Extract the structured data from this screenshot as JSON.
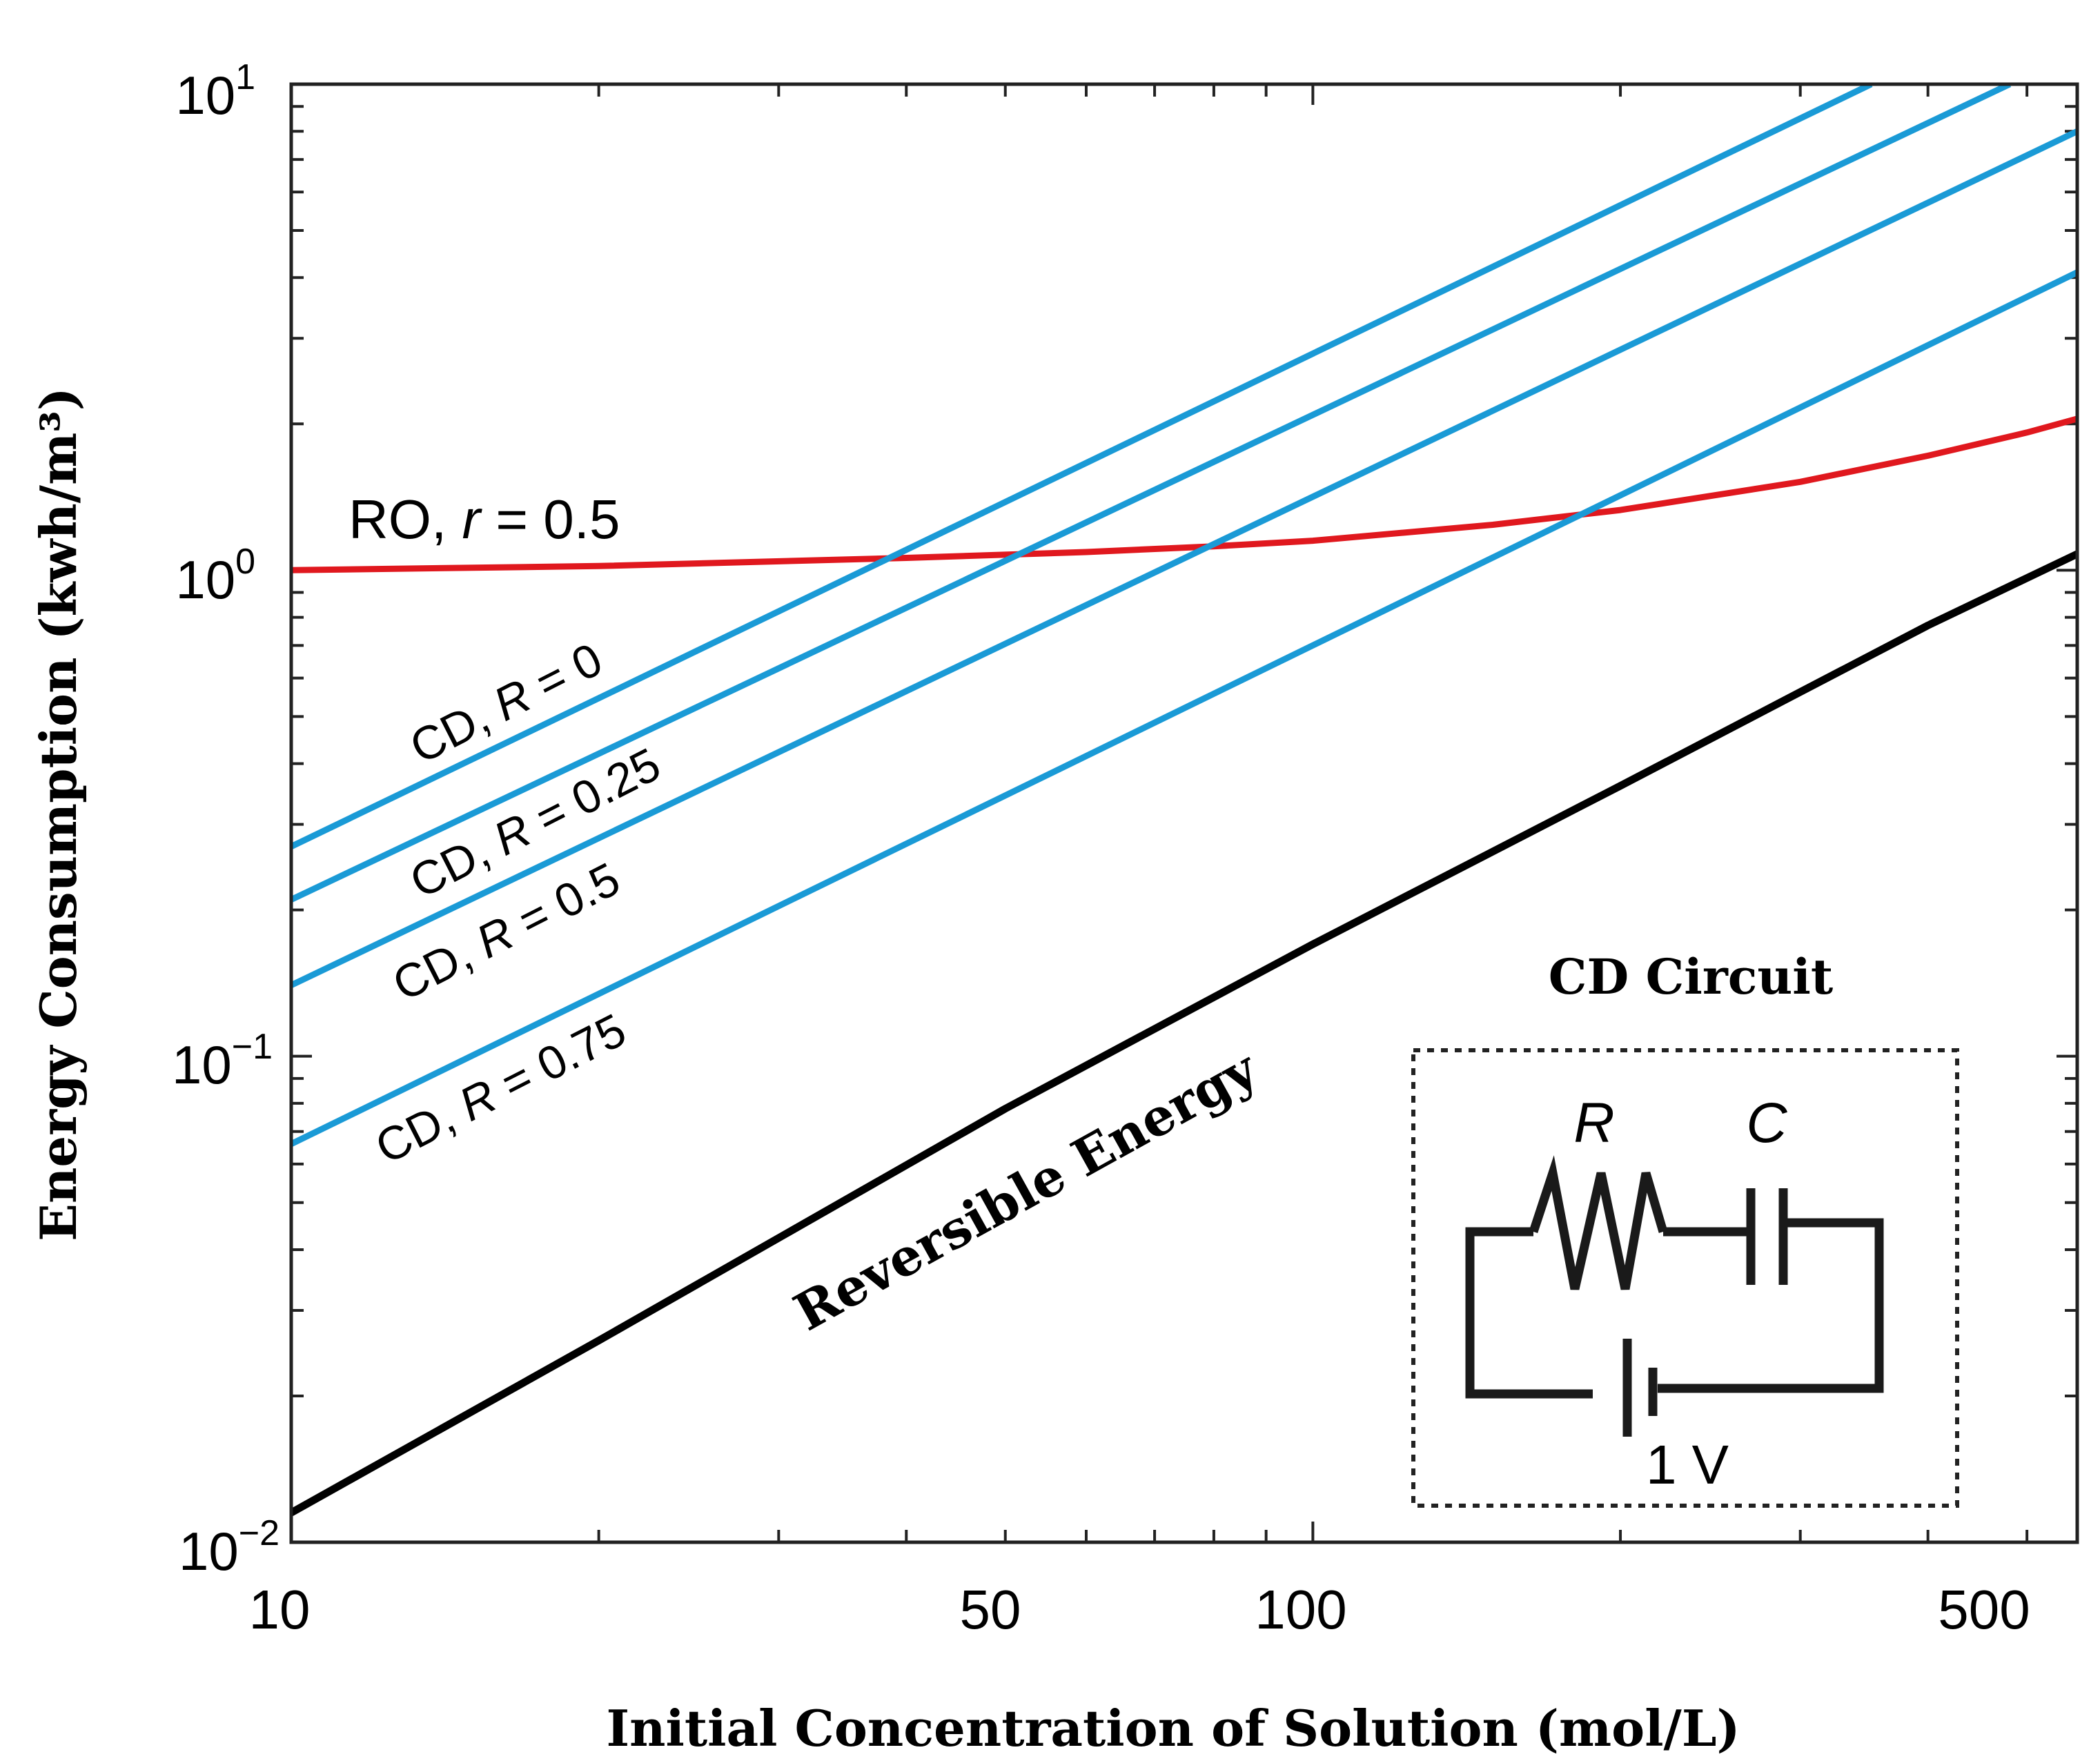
{
  "chart_data": {
    "type": "line",
    "xscale": "log",
    "yscale": "log",
    "xlim": [
      10,
      560
    ],
    "ylim": [
      0.01,
      10
    ],
    "xlabel": "Initial Concentration of Solution (mol/L)",
    "ylabel": "Energy Consumption (kwh/m³)",
    "x_ticks": [
      {
        "value": 10,
        "label": "10"
      },
      {
        "value": 50,
        "label": "50"
      },
      {
        "value": 100,
        "label": "100"
      },
      {
        "value": 500,
        "label": "500"
      }
    ],
    "y_ticks": [
      {
        "value": 0.01,
        "base": "10",
        "exp": "−2"
      },
      {
        "value": 0.1,
        "base": "10",
        "exp": "−1"
      },
      {
        "value": 1,
        "base": "10",
        "exp": "0"
      },
      {
        "value": 10,
        "base": "10",
        "exp": "1"
      }
    ],
    "series": [
      {
        "name": "RO, r = 0.5",
        "color": "#e0181e",
        "x": [
          10,
          20,
          40,
          60,
          80,
          100,
          150,
          200,
          300,
          400,
          500,
          560
        ],
        "y": [
          1.0,
          1.02,
          1.06,
          1.09,
          1.12,
          1.15,
          1.24,
          1.33,
          1.52,
          1.72,
          1.92,
          2.05
        ]
      },
      {
        "name": "CD, R = 0",
        "color": "#1a9ad6",
        "x": [
          10,
          352
        ],
        "y": [
          0.27,
          10
        ]
      },
      {
        "name": "CD, R = 0.25",
        "color": "#1a9ad6",
        "x": [
          10,
          481
        ],
        "y": [
          0.21,
          10
        ]
      },
      {
        "name": "CD, R = 0.5",
        "color": "#1a9ad6",
        "x": [
          10,
          560
        ],
        "y": [
          0.14,
          8.0
        ]
      },
      {
        "name": "CD, R = 0.75",
        "color": "#1a9ad6",
        "x": [
          10,
          560
        ],
        "y": [
          0.066,
          4.1
        ]
      },
      {
        "name": "Reversible Energy",
        "color": "#000000",
        "x": [
          10,
          20,
          50,
          100,
          200,
          400,
          560
        ],
        "y": [
          0.0115,
          0.026,
          0.078,
          0.17,
          0.36,
          0.77,
          1.08
        ]
      }
    ],
    "labels": {
      "ro": {
        "prefix": "RO, ",
        "var": "r",
        "value": " = 0.5"
      },
      "cd": [
        {
          "prefix": "CD, ",
          "var": "R",
          "value": " = 0"
        },
        {
          "prefix": "CD, ",
          "var": "R",
          "value": " = 0.25"
        },
        {
          "prefix": "CD, ",
          "var": "R",
          "value": " = 0.5"
        },
        {
          "prefix": "CD, ",
          "var": "R",
          "value": " = 0.75"
        }
      ],
      "reversible": "Reversible Energy"
    },
    "inset": {
      "title": "CD Circuit",
      "resistor_label": "R",
      "capacitor_label": "C",
      "source_label": "1 V"
    }
  }
}
